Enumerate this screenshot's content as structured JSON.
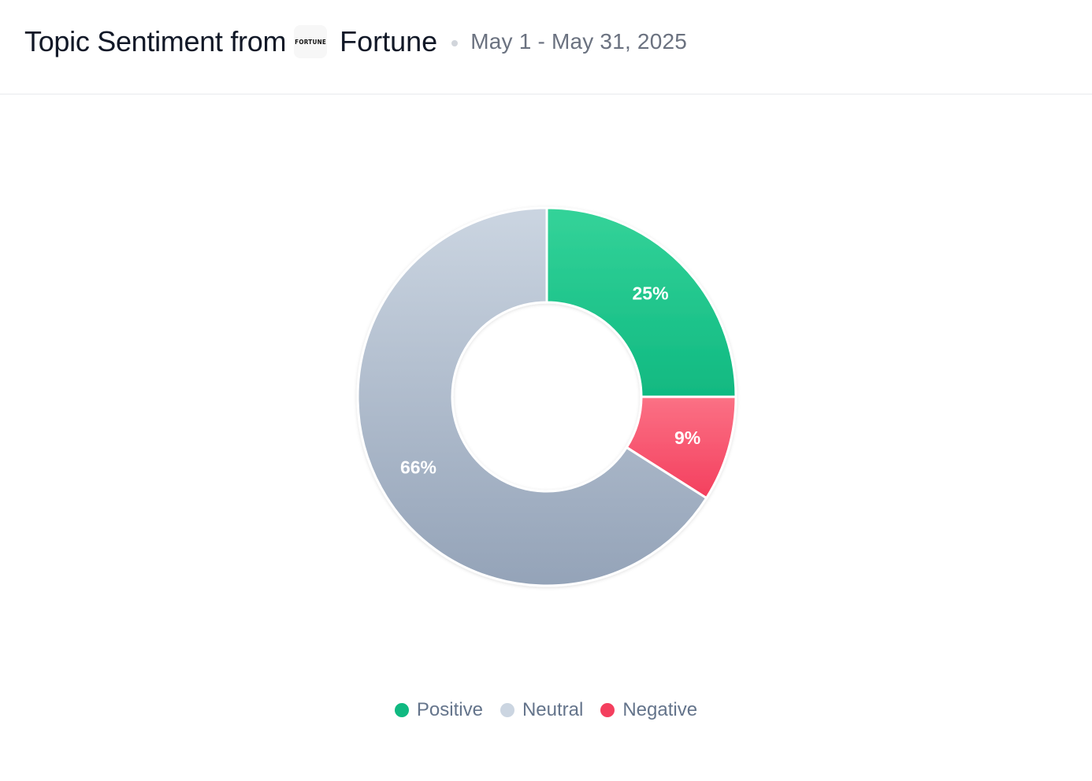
{
  "header": {
    "title": "Topic Sentiment from",
    "logo_text": "FORTUNE",
    "source": "Fortune",
    "date_range": "May 1 - May 31, 2025"
  },
  "chart_data": {
    "type": "pie",
    "donut": true,
    "slices": [
      {
        "name": "Positive",
        "value": 25,
        "label": "25%",
        "color_top": "#34d399",
        "color_bottom": "#10b981"
      },
      {
        "name": "Negative",
        "value": 9,
        "label": "9%",
        "color_top": "#fb7185",
        "color_bottom": "#f43f5e"
      },
      {
        "name": "Neutral",
        "value": 66,
        "label": "66%",
        "color_top": "#cbd5e1",
        "color_bottom": "#94a3b8"
      }
    ],
    "legend": [
      {
        "label": "Positive",
        "color": "#10b981"
      },
      {
        "label": "Neutral",
        "color": "#cbd5e1"
      },
      {
        "label": "Negative",
        "color": "#f43f5e"
      }
    ],
    "legend_position": "bottom-center",
    "start": "12 o'clock, clockwise"
  }
}
